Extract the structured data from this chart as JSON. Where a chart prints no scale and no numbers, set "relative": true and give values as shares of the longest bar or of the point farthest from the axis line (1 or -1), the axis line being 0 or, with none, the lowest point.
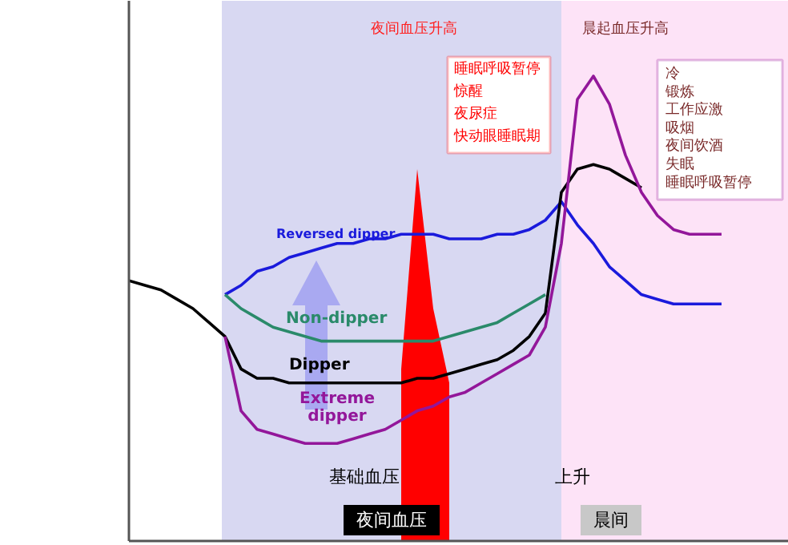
{
  "chart_data": {
    "type": "line",
    "relative": true,
    "categories": [
      null,
      null,
      null,
      null,
      null,
      null,
      null,
      null,
      null,
      null,
      null,
      null,
      null,
      null,
      null,
      null,
      null,
      null,
      null,
      null,
      null,
      null,
      null,
      null,
      null,
      null,
      null,
      null,
      null,
      null,
      null,
      null,
      null,
      null,
      null,
      null,
      null,
      null,
      null,
      null,
      null
    ],
    "series": [
      {
        "type": "area",
        "color": "#ff0000",
        "values": [
          null,
          null,
          null,
          null,
          null,
          null,
          null,
          null,
          null,
          null,
          null,
          null,
          null,
          null,
          null,
          null,
          null,
          0.37,
          0.8,
          0.5,
          0.34,
          null,
          null,
          null,
          null,
          null,
          null,
          null,
          null,
          null,
          null,
          null,
          null,
          null,
          null,
          null,
          null,
          null,
          null,
          null,
          null
        ]
      },
      {
        "name": "Reversed dipper",
        "color": "#1a1adc",
        "values": [
          null,
          null,
          null,
          null,
          null,
          null,
          0.53,
          0.55,
          0.58,
          0.59,
          0.61,
          0.62,
          0.63,
          0.64,
          0.64,
          0.65,
          0.65,
          0.66,
          0.66,
          0.66,
          0.65,
          0.65,
          0.65,
          0.66,
          0.66,
          0.67,
          0.69,
          0.73,
          0.68,
          0.64,
          0.59,
          0.56,
          0.53,
          0.52,
          0.51,
          0.51,
          0.51,
          0.51,
          null,
          null,
          null
        ]
      },
      {
        "name": "Non-dipper",
        "color": "#2a8a6a",
        "values": [
          null,
          null,
          null,
          null,
          null,
          null,
          0.53,
          0.5,
          0.48,
          0.46,
          0.45,
          0.44,
          0.43,
          0.43,
          0.43,
          0.43,
          0.43,
          0.43,
          0.43,
          0.43,
          0.44,
          0.45,
          0.46,
          0.47,
          0.49,
          0.51,
          0.53,
          null,
          null,
          null,
          null,
          null,
          null,
          null,
          null,
          null,
          null,
          null,
          null,
          null,
          null
        ]
      },
      {
        "name": "Dipper",
        "color": "#000000",
        "values": [
          0.56,
          0.55,
          0.54,
          0.52,
          0.5,
          0.47,
          0.44,
          0.37,
          0.35,
          0.35,
          0.34,
          0.34,
          0.34,
          0.34,
          0.34,
          0.34,
          0.34,
          0.34,
          0.35,
          0.35,
          0.36,
          0.37,
          0.38,
          0.39,
          0.41,
          0.44,
          0.49,
          0.75,
          0.8,
          0.81,
          0.8,
          0.78,
          0.76,
          null,
          null,
          null,
          null,
          null,
          null,
          null,
          null
        ]
      },
      {
        "name": "Extreme\ndipper",
        "color": "#93179a",
        "values": [
          null,
          null,
          null,
          null,
          null,
          null,
          0.44,
          0.28,
          0.24,
          0.23,
          0.22,
          0.21,
          0.21,
          0.21,
          0.22,
          0.23,
          0.24,
          0.26,
          0.28,
          0.29,
          0.31,
          0.32,
          0.34,
          0.36,
          0.38,
          0.4,
          0.46,
          0.64,
          0.95,
          1.0,
          0.94,
          0.83,
          0.75,
          0.7,
          0.67,
          0.66,
          0.66,
          0.66,
          null,
          null,
          null
        ]
      }
    ],
    "annotations": [
      "夜间血压升高",
      "睡眠呼吸暂停",
      "惊醒",
      "夜尿症",
      "快动眼睡眠期",
      "晨起血压升高",
      "冷",
      "锻炼",
      "工作应激",
      "吸烟",
      "夜间饮酒",
      "失眠",
      "睡眠呼吸暂停",
      "基础血压",
      "上升",
      "夜间血压",
      "晨间"
    ]
  }
}
